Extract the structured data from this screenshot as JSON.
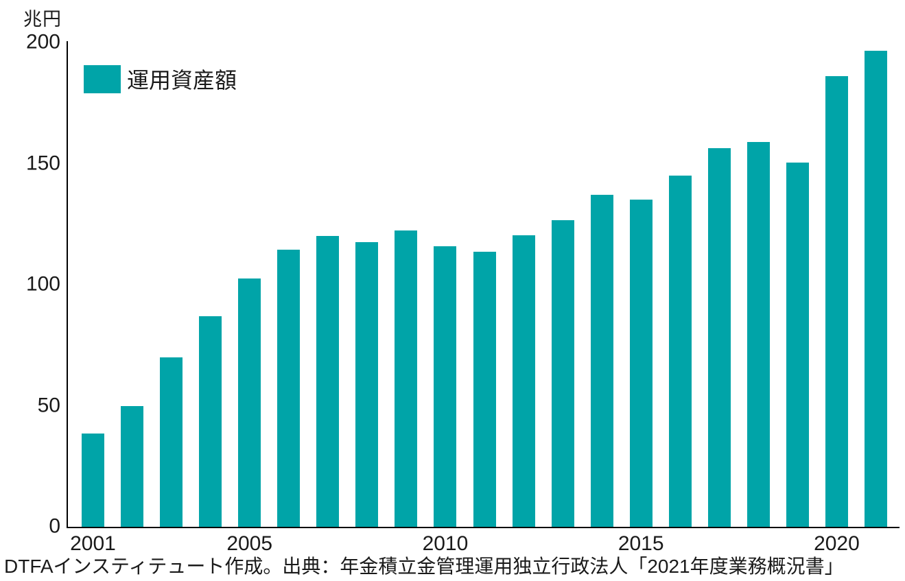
{
  "chart_data": {
    "type": "bar",
    "title": "",
    "unit_label": "兆円",
    "xlabel": "",
    "ylabel": "兆円",
    "ylim": [
      0,
      200
    ],
    "yticks": [
      0,
      50,
      100,
      150,
      200
    ],
    "grid": false,
    "legend_position": "top-left",
    "bar_color": "#00A4A8",
    "legend": [
      {
        "label": "運用資産額",
        "color": "#00A4A8"
      }
    ],
    "categories": [
      "2001",
      "2002",
      "2003",
      "2004",
      "2005",
      "2006",
      "2007",
      "2008",
      "2009",
      "2010",
      "2011",
      "2012",
      "2013",
      "2014",
      "2015",
      "2016",
      "2017",
      "2018",
      "2019",
      "2020",
      "2021"
    ],
    "values": [
      38.5,
      50,
      70,
      87,
      102.5,
      114.5,
      120,
      117.5,
      122.5,
      116,
      113.5,
      120.5,
      126.5,
      137,
      135,
      145,
      156.5,
      159,
      150.5,
      186,
      196.5
    ],
    "xtick_labels": [
      "2001",
      "2005",
      "2010",
      "2015",
      "2020"
    ],
    "xtick_bar_indices": [
      0,
      4,
      9,
      14,
      19
    ]
  },
  "footer": {
    "source_text": "DTFAインスティテュート作成。出典：年金積立金管理運用独立行政法人「2021年度業務概況書」"
  },
  "colors": {
    "axis": "#000000",
    "text": "#1a1a1a",
    "background": "#ffffff"
  }
}
